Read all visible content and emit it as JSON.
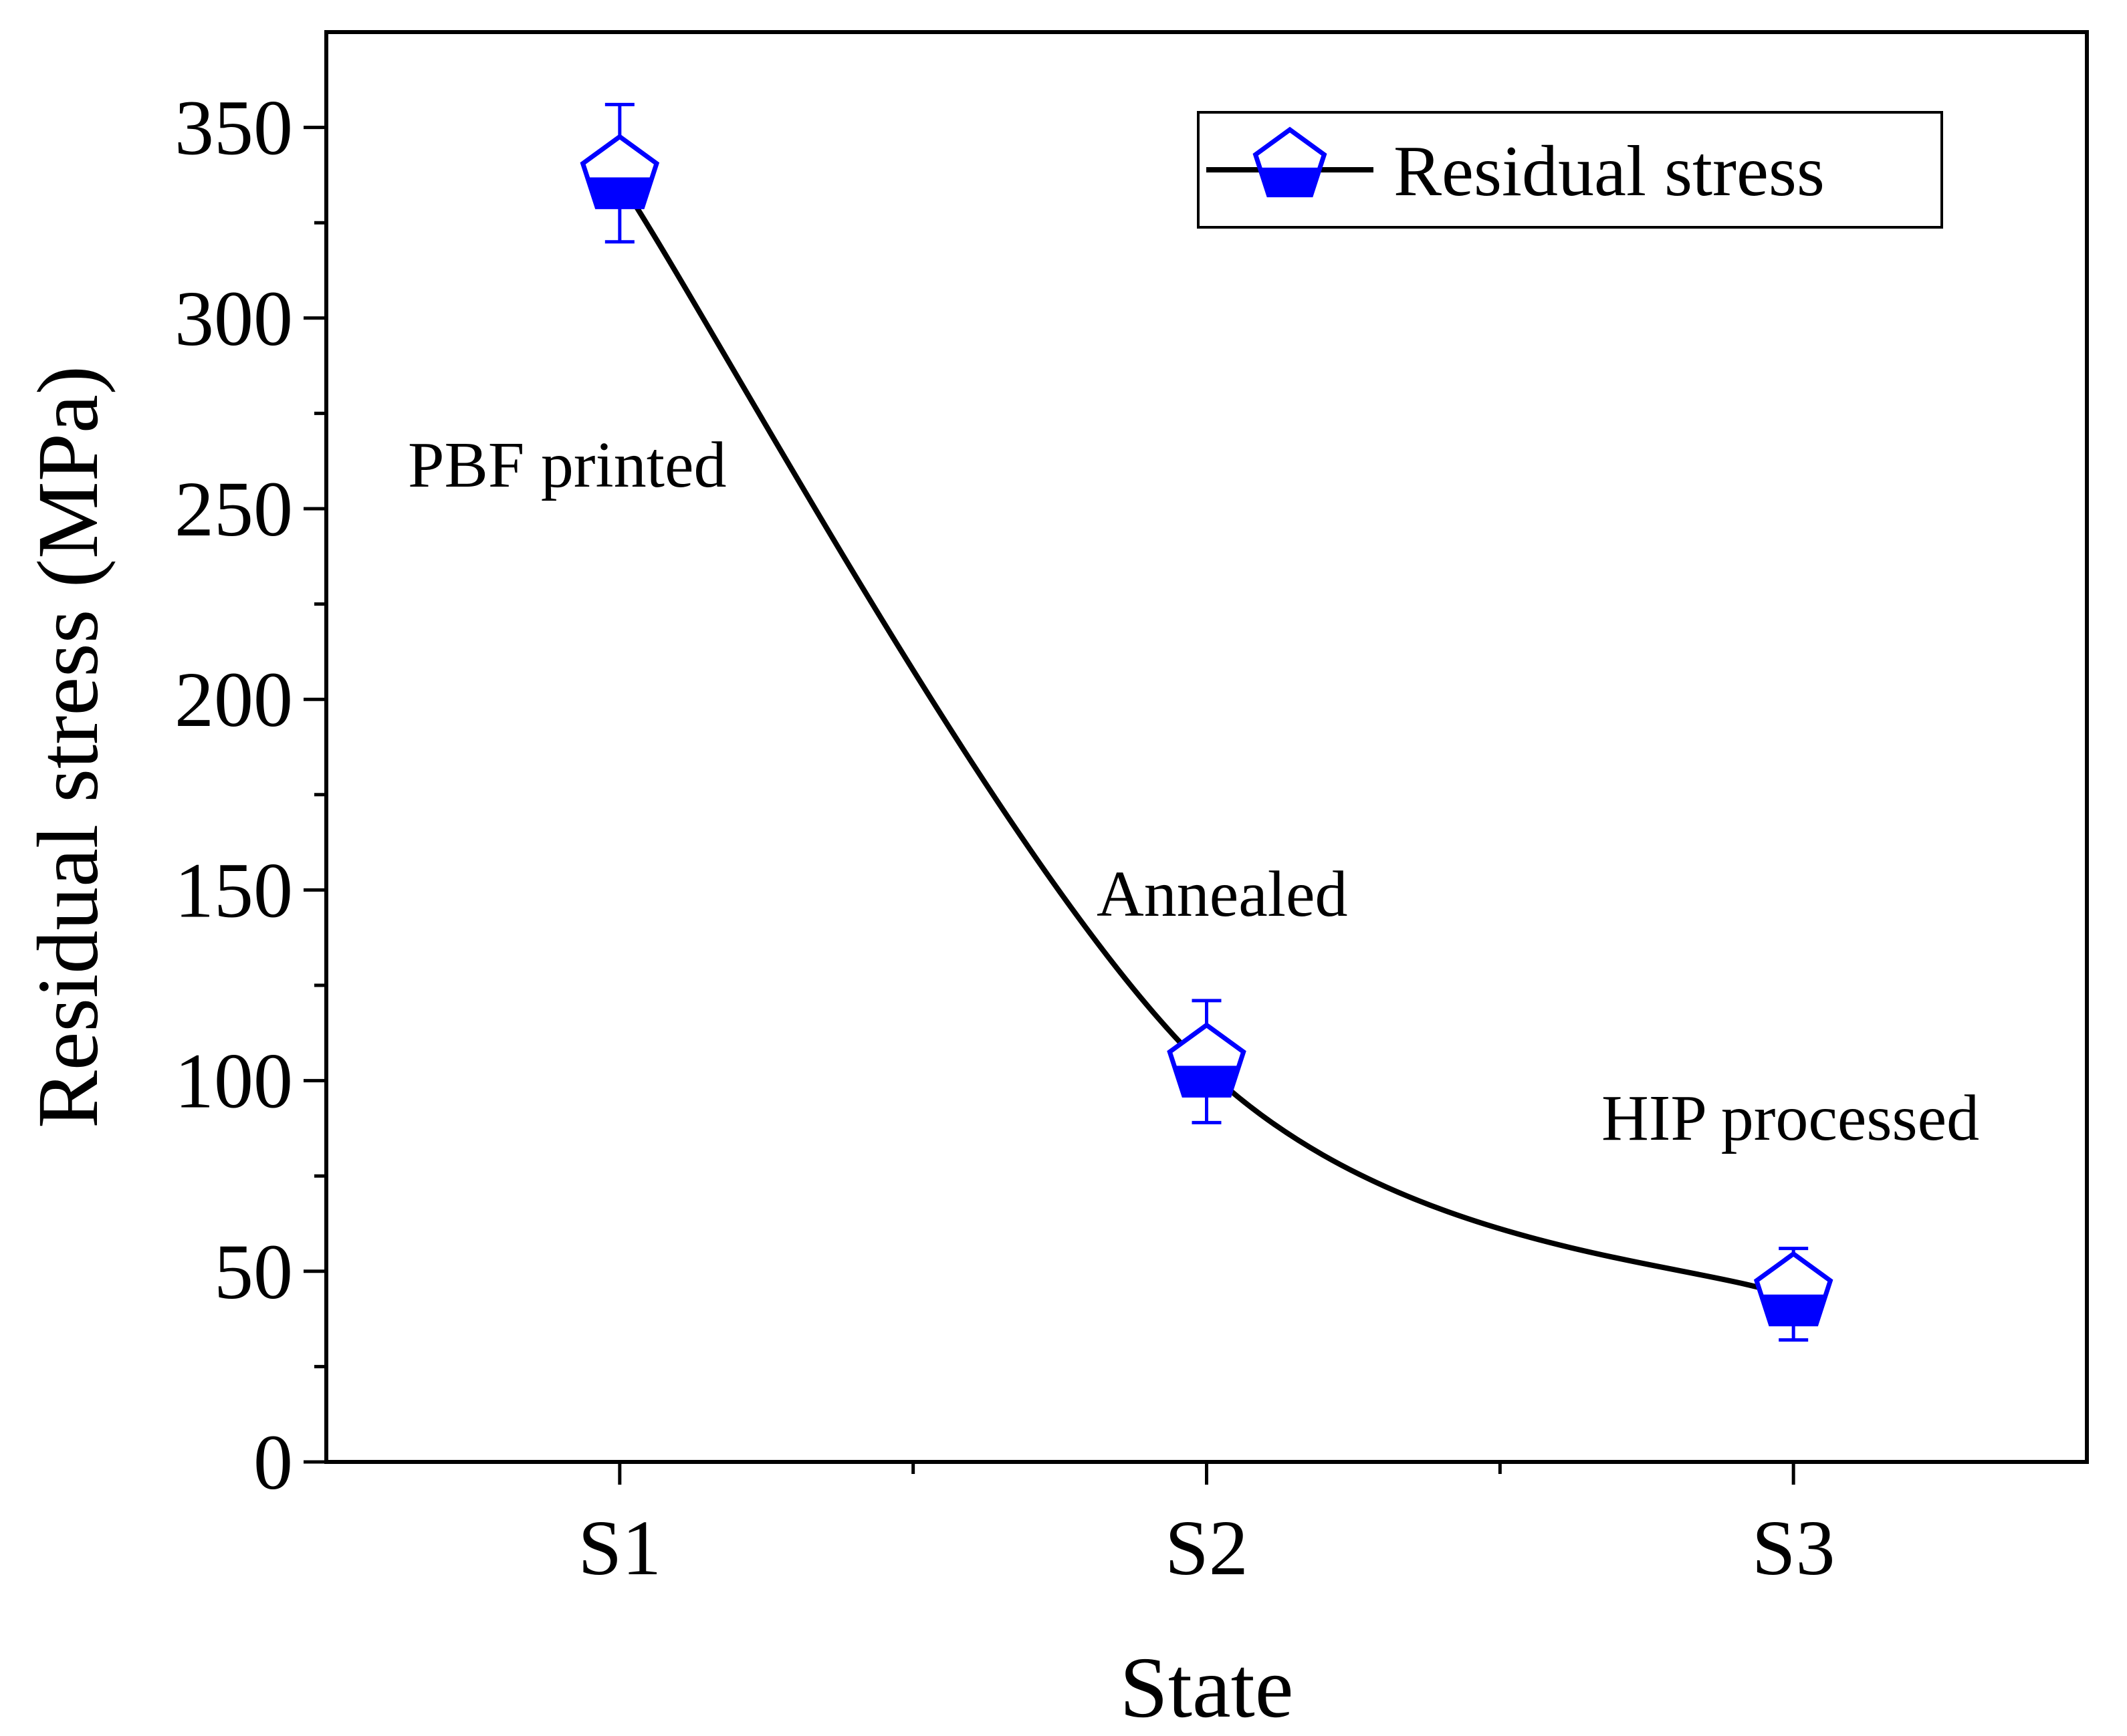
{
  "chart_data": {
    "type": "line",
    "title": "",
    "xlabel": "State",
    "ylabel": "Residual stress (MPa)",
    "categories": [
      "S1",
      "S2",
      "S3"
    ],
    "ylim": [
      0,
      375
    ],
    "yticks": [
      0,
      50,
      100,
      150,
      200,
      250,
      300,
      350
    ],
    "grid": false,
    "legend": {
      "position": "top-right",
      "entries": [
        "Residual stress"
      ]
    },
    "series": [
      {
        "name": "Residual stress",
        "values": [
          336,
          103,
          43
        ],
        "error_low": [
          320,
          89,
          32
        ],
        "error_high": [
          356,
          121,
          56
        ],
        "marker": "half-filled-pentagon",
        "marker_color": "#0000ff",
        "line_color": "#000000",
        "curve": "smooth"
      }
    ],
    "annotations": [
      {
        "text": "PBF printed",
        "category": "S1"
      },
      {
        "text": "Annealed",
        "category": "S2"
      },
      {
        "text": "HIP processed",
        "category": "S3"
      }
    ]
  }
}
